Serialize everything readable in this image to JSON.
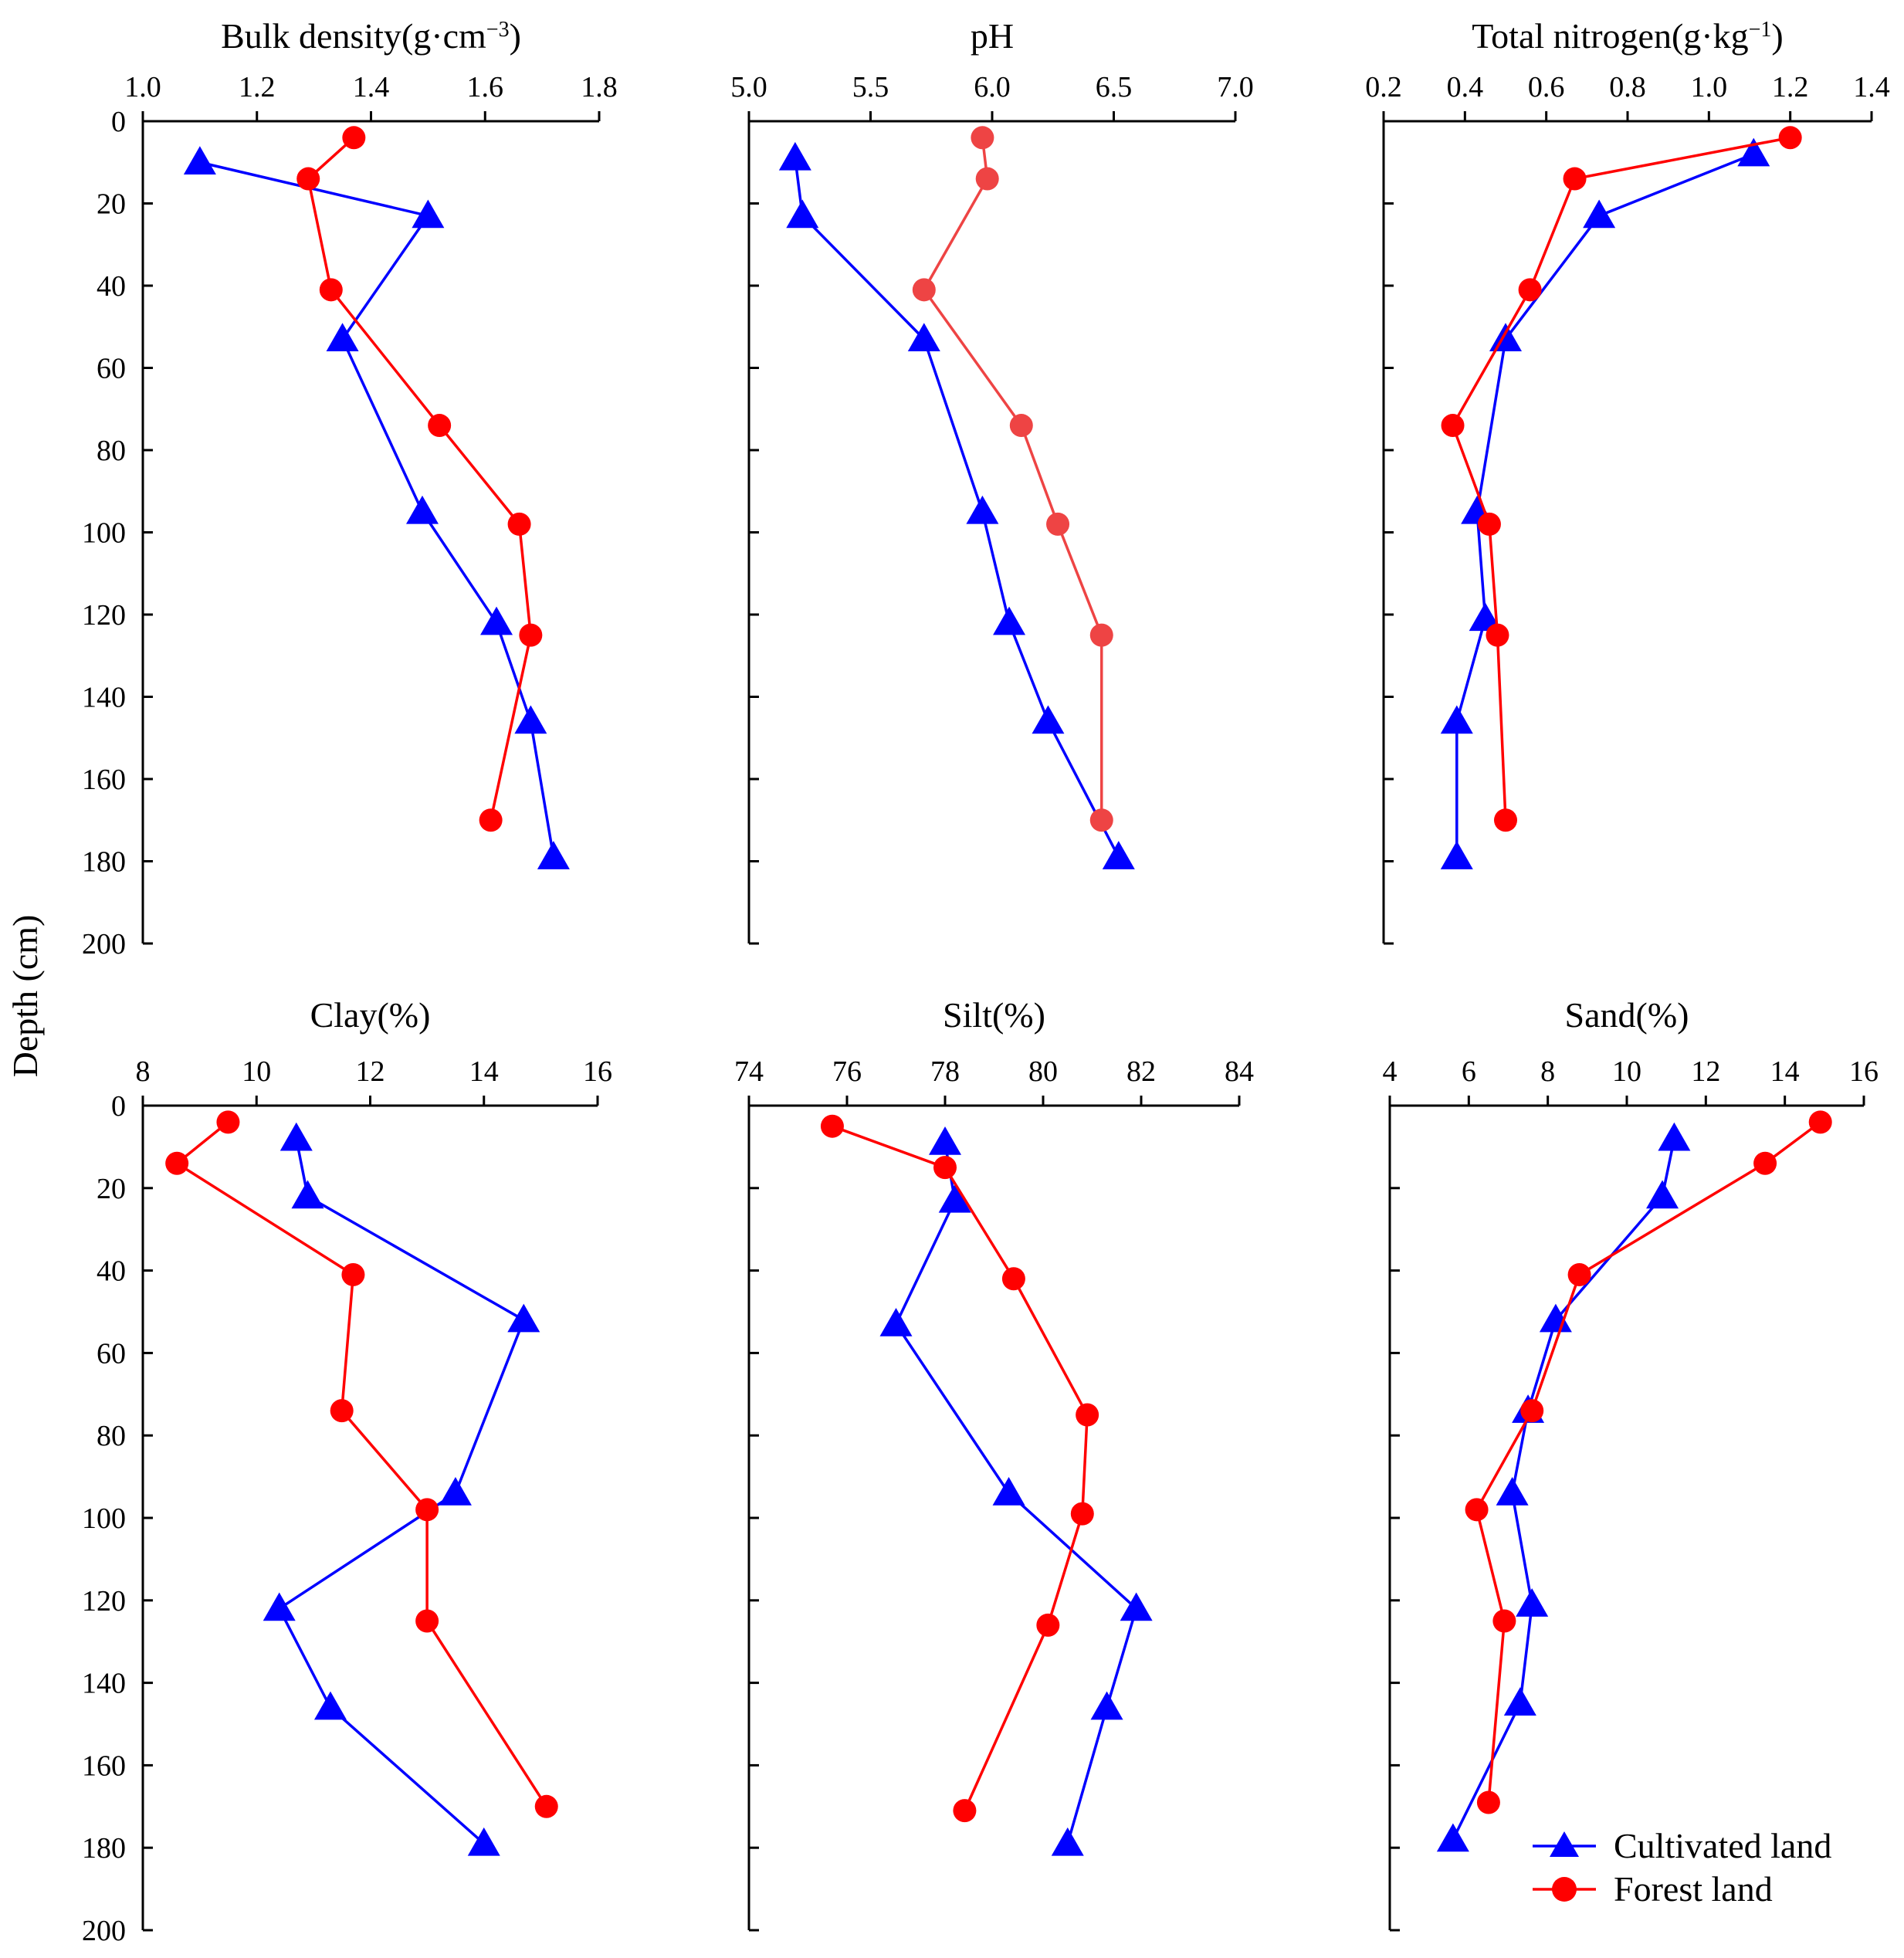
{
  "y_axis_label": "Depth (cm)",
  "colors": {
    "cultivated": "#0000ff",
    "forest": "#ff0000",
    "forest_ph": "#ee4444",
    "axis": "#000000"
  },
  "legend": {
    "cultivated_label": "Cultivated land",
    "forest_label": "Forest land",
    "placement": "bottom-right"
  },
  "chart_data": [
    {
      "type": "line",
      "title_main": "Bulk density",
      "title_unit": "(g·cm",
      "title_sup": "−3",
      "title_end": ")",
      "xlim": [
        1.0,
        1.8
      ],
      "xticks": [
        "1.0",
        "1.2",
        "1.4",
        "1.6",
        "1.8"
      ],
      "ylim": [
        0,
        200
      ],
      "yticks": [
        "0",
        "20",
        "40",
        "60",
        "80",
        "100",
        "120",
        "140",
        "160",
        "180",
        "200"
      ],
      "show_y_labels": true,
      "series": [
        {
          "name": "Cultivated land",
          "marker": "triangle",
          "points": [
            [
              1.1,
              10
            ],
            [
              1.5,
              23
            ],
            [
              1.35,
              53
            ],
            [
              1.49,
              95
            ],
            [
              1.62,
              122
            ],
            [
              1.68,
              146
            ],
            [
              1.72,
              179
            ]
          ]
        },
        {
          "name": "Forest land",
          "marker": "circle",
          "points": [
            [
              1.37,
              4
            ],
            [
              1.29,
              14
            ],
            [
              1.33,
              41
            ],
            [
              1.52,
              74
            ],
            [
              1.66,
              98
            ],
            [
              1.68,
              125
            ],
            [
              1.61,
              170
            ]
          ]
        }
      ]
    },
    {
      "type": "line",
      "title_main": "pH",
      "title_unit": "",
      "title_sup": "",
      "title_end": "",
      "xlim": [
        5.0,
        7.0
      ],
      "xticks": [
        "5.0",
        "5.5",
        "6.0",
        "6.5",
        "7.0"
      ],
      "ylim": [
        0,
        200
      ],
      "yticks": [
        "0",
        "20",
        "40",
        "60",
        "80",
        "100",
        "120",
        "140",
        "160",
        "180",
        "200"
      ],
      "show_y_labels": false,
      "series": [
        {
          "name": "Cultivated land",
          "marker": "triangle",
          "points": [
            [
              5.19,
              9
            ],
            [
              5.22,
              23
            ],
            [
              5.72,
              53
            ],
            [
              5.96,
              95
            ],
            [
              6.07,
              122
            ],
            [
              6.23,
              146
            ],
            [
              6.52,
              179
            ]
          ]
        },
        {
          "name": "Forest land",
          "marker": "circle",
          "points": [
            [
              5.96,
              4
            ],
            [
              5.98,
              14
            ],
            [
              5.72,
              41
            ],
            [
              6.12,
              74
            ],
            [
              6.27,
              98
            ],
            [
              6.45,
              125
            ],
            [
              6.45,
              170
            ]
          ]
        }
      ]
    },
    {
      "type": "line",
      "title_main": "Total nitrogen",
      "title_unit": "(g·kg",
      "title_sup": "−1",
      "title_end": ")",
      "xlim": [
        0.2,
        1.4
      ],
      "xticks": [
        "0.2",
        "0.4",
        "0.6",
        "0.8",
        "1.0",
        "1.2",
        "1.4"
      ],
      "ylim": [
        0,
        200
      ],
      "yticks": [
        "0",
        "20",
        "40",
        "60",
        "80",
        "100",
        "120",
        "140",
        "160",
        "180",
        "200"
      ],
      "show_y_labels": false,
      "series": [
        {
          "name": "Cultivated land",
          "marker": "triangle",
          "points": [
            [
              1.11,
              8
            ],
            [
              0.73,
              23
            ],
            [
              0.5,
              53
            ],
            [
              0.43,
              95
            ],
            [
              0.45,
              121
            ],
            [
              0.38,
              146
            ],
            [
              0.38,
              179
            ]
          ]
        },
        {
          "name": "Forest land",
          "marker": "circle",
          "points": [
            [
              1.2,
              4
            ],
            [
              0.67,
              14
            ],
            [
              0.56,
              41
            ],
            [
              0.37,
              74
            ],
            [
              0.46,
              98
            ],
            [
              0.48,
              125
            ],
            [
              0.5,
              170
            ]
          ]
        }
      ]
    },
    {
      "type": "line",
      "title_main": "Clay",
      "title_unit": "(%)",
      "title_sup": "",
      "title_end": "",
      "xlim": [
        8,
        16
      ],
      "xticks": [
        "8",
        "10",
        "12",
        "14",
        "16"
      ],
      "ylim": [
        0,
        200
      ],
      "yticks": [
        "0",
        "20",
        "40",
        "60",
        "80",
        "100",
        "120",
        "140",
        "160",
        "180",
        "200"
      ],
      "show_y_labels": true,
      "series": [
        {
          "name": "Cultivated land",
          "marker": "triangle",
          "points": [
            [
              10.7,
              8
            ],
            [
              10.9,
              22
            ],
            [
              14.7,
              52
            ],
            [
              13.5,
              94
            ],
            [
              10.4,
              122
            ],
            [
              11.3,
              146
            ],
            [
              14.0,
              179
            ]
          ]
        },
        {
          "name": "Forest land",
          "marker": "circle",
          "points": [
            [
              9.5,
              4
            ],
            [
              8.6,
              14
            ],
            [
              11.7,
              41
            ],
            [
              11.5,
              74
            ],
            [
              13.0,
              98
            ],
            [
              13.0,
              125
            ],
            [
              15.1,
              170
            ]
          ]
        }
      ]
    },
    {
      "type": "line",
      "title_main": "Silt",
      "title_unit": "(%)",
      "title_sup": "",
      "title_end": "",
      "xlim": [
        74,
        84
      ],
      "xticks": [
        "74",
        "76",
        "78",
        "80",
        "82",
        "84"
      ],
      "ylim": [
        0,
        200
      ],
      "yticks": [
        "0",
        "20",
        "40",
        "60",
        "80",
        "100",
        "120",
        "140",
        "160",
        "180",
        "200"
      ],
      "show_y_labels": false,
      "series": [
        {
          "name": "Cultivated land",
          "marker": "triangle",
          "points": [
            [
              78.0,
              9
            ],
            [
              78.2,
              23
            ],
            [
              77.0,
              53
            ],
            [
              79.3,
              94
            ],
            [
              81.9,
              122
            ],
            [
              81.3,
              146
            ],
            [
              80.5,
              179
            ]
          ]
        },
        {
          "name": "Forest land",
          "marker": "circle",
          "points": [
            [
              75.7,
              5
            ],
            [
              78.0,
              15
            ],
            [
              79.4,
              42
            ],
            [
              80.9,
              75
            ],
            [
              80.8,
              99
            ],
            [
              80.1,
              126
            ],
            [
              78.4,
              171
            ]
          ]
        }
      ]
    },
    {
      "type": "line",
      "title_main": "Sand",
      "title_unit": "(%)",
      "title_sup": "",
      "title_end": "",
      "xlim": [
        4,
        16
      ],
      "xticks": [
        "4",
        "6",
        "8",
        "10",
        "12",
        "14",
        "16"
      ],
      "ylim": [
        0,
        200
      ],
      "yticks": [
        "0",
        "20",
        "40",
        "60",
        "80",
        "100",
        "120",
        "140",
        "160",
        "180",
        "200"
      ],
      "show_y_labels": false,
      "series": [
        {
          "name": "Cultivated land",
          "marker": "triangle",
          "points": [
            [
              11.2,
              8
            ],
            [
              10.9,
              22
            ],
            [
              8.2,
              52
            ],
            [
              7.5,
              74
            ],
            [
              7.1,
              94
            ],
            [
              7.6,
              121
            ],
            [
              7.3,
              145
            ],
            [
              5.6,
              178
            ]
          ]
        },
        {
          "name": "Forest land",
          "marker": "circle",
          "points": [
            [
              14.9,
              4
            ],
            [
              13.5,
              14
            ],
            [
              8.8,
              41
            ],
            [
              7.6,
              74
            ],
            [
              6.2,
              98
            ],
            [
              6.9,
              125
            ],
            [
              6.5,
              169
            ]
          ]
        }
      ]
    }
  ]
}
